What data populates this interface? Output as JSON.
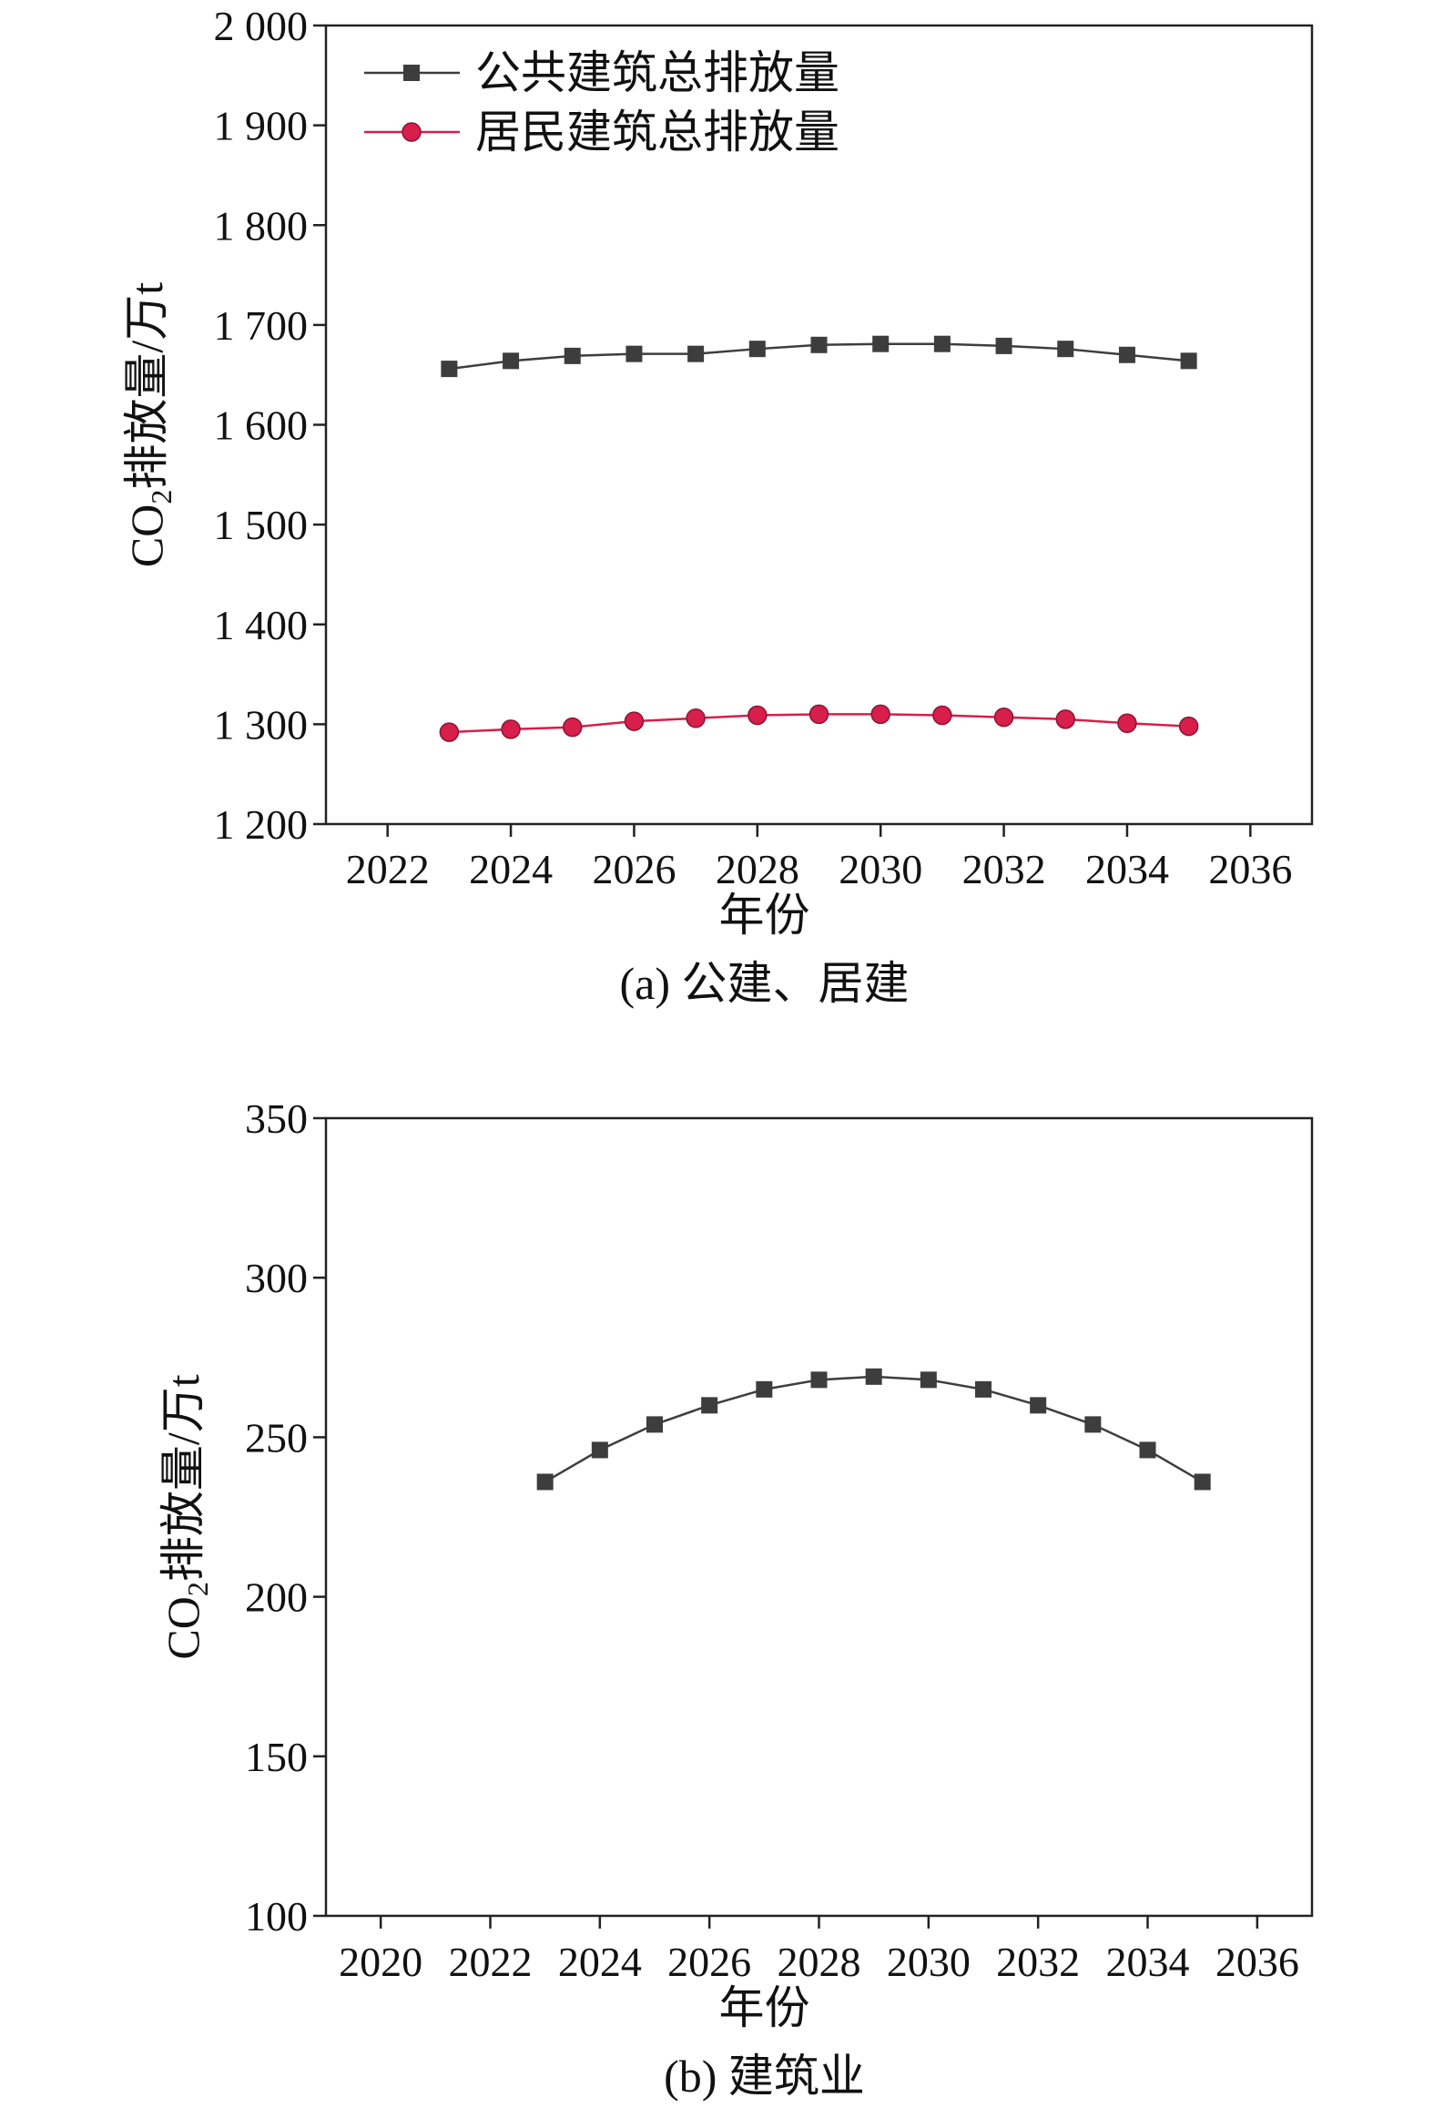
{
  "colors": {
    "series_public": "#3d3d3d",
    "series_residential": "#d81e4a",
    "axis": "#222222"
  },
  "chart_data": [
    {
      "type": "line",
      "caption": "(a) 公建、居建",
      "xlabel": "年份",
      "ylabel": "CO2排放量/万t",
      "ylabel_parts": {
        "main": "CO",
        "sub": "2",
        "rest": "排放量/万t"
      },
      "xlim": [
        2021,
        2037
      ],
      "ylim": [
        1200,
        2000
      ],
      "xticks": [
        2022,
        2024,
        2026,
        2028,
        2030,
        2032,
        2034,
        2036
      ],
      "xtick_labels": [
        "2022",
        "2024",
        "2026",
        "2028",
        "2030",
        "2032",
        "2034",
        "2036"
      ],
      "yticks": [
        1200,
        1300,
        1400,
        1500,
        1600,
        1700,
        1800,
        1900,
        2000
      ],
      "ytick_labels": [
        "1 200",
        "1 300",
        "1 400",
        "1 500",
        "1 600",
        "1 700",
        "1 800",
        "1 900",
        "2 000"
      ],
      "legend_position": "top-left",
      "x": [
        2023,
        2024,
        2025,
        2026,
        2027,
        2028,
        2029,
        2030,
        2031,
        2032,
        2033,
        2034,
        2035
      ],
      "series": [
        {
          "name": "公共建筑总排放量",
          "marker": "square",
          "color": "#3d3d3d",
          "values": [
            1656,
            1664,
            1669,
            1671,
            1671,
            1676,
            1680,
            1681,
            1681,
            1679,
            1676,
            1670,
            1664
          ]
        },
        {
          "name": "居民建筑总排放量",
          "marker": "circle",
          "color": "#d81e4a",
          "values": [
            1292,
            1295,
            1297,
            1303,
            1306,
            1309,
            1310,
            1310,
            1309,
            1307,
            1305,
            1301,
            1298
          ]
        }
      ]
    },
    {
      "type": "line",
      "caption": "(b) 建筑业",
      "xlabel": "年份",
      "ylabel": "CO2排放量/万t",
      "ylabel_parts": {
        "main": "CO",
        "sub": "2",
        "rest": "排放量/万t"
      },
      "xlim": [
        2019,
        2037
      ],
      "ylim": [
        100,
        350
      ],
      "xticks": [
        2020,
        2022,
        2024,
        2026,
        2028,
        2030,
        2032,
        2034,
        2036
      ],
      "xtick_labels": [
        "2020",
        "2022",
        "2024",
        "2026",
        "2028",
        "2030",
        "2032",
        "2034",
        "2036"
      ],
      "yticks": [
        100,
        150,
        200,
        250,
        300,
        350
      ],
      "ytick_labels": [
        "100",
        "150",
        "200",
        "250",
        "300",
        "350"
      ],
      "legend_position": "none",
      "x": [
        2023,
        2024,
        2025,
        2026,
        2027,
        2028,
        2029,
        2030,
        2031,
        2032,
        2033,
        2034,
        2035
      ],
      "series": [
        {
          "name": "",
          "marker": "square",
          "color": "#3d3d3d",
          "values": [
            236,
            246,
            254,
            260,
            265,
            268,
            269,
            268,
            265,
            260,
            254,
            246,
            236
          ]
        }
      ]
    }
  ]
}
